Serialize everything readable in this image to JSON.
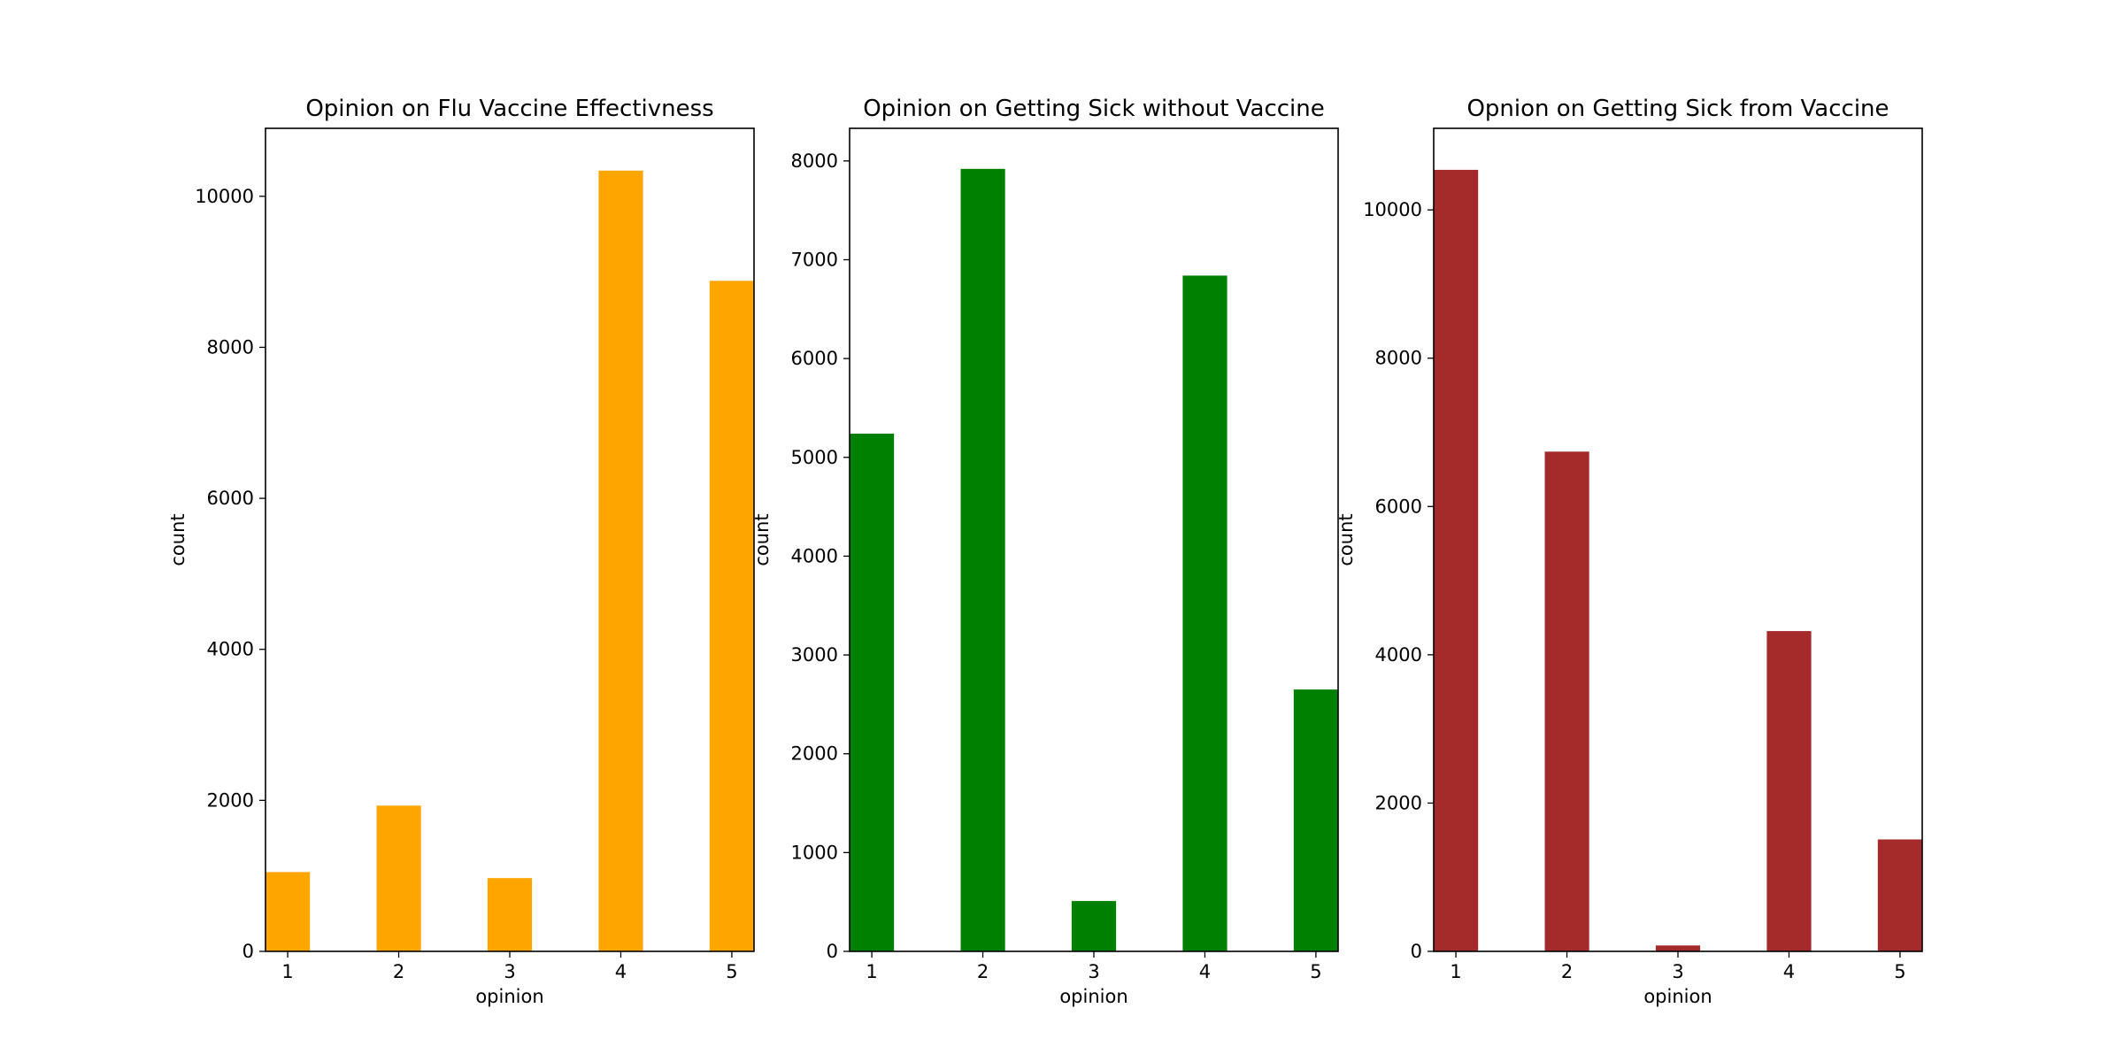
{
  "chart_data": [
    {
      "type": "bar",
      "title": "Opinion on Flu Vaccine Effectivness",
      "xlabel": "opinion",
      "ylabel": "count",
      "color": "#ffa500",
      "x": [
        1,
        2,
        4,
        5
      ],
      "values": [
        1050,
        1930,
        10340,
        8880
      ],
      "extra_bar": {
        "x": 3,
        "value": 970
      },
      "xticks": [
        "1",
        "2",
        "3",
        "4",
        "5"
      ],
      "yticks": [
        0,
        2000,
        4000,
        6000,
        8000,
        10000
      ],
      "ylim": [
        0,
        10900
      ],
      "xlim": [
        0.8,
        5.2
      ],
      "grid": false
    },
    {
      "type": "bar",
      "title": "Opinion on Getting Sick without Vaccine",
      "xlabel": "opinion",
      "ylabel": "count",
      "color": "#008000",
      "x": [
        1,
        2,
        4,
        5
      ],
      "values": [
        5240,
        7920,
        6840,
        2650
      ],
      "extra_bar": {
        "x": 3,
        "value": 510
      },
      "xticks": [
        "1",
        "2",
        "3",
        "4",
        "5"
      ],
      "yticks": [
        0,
        1000,
        2000,
        3000,
        4000,
        5000,
        6000,
        7000,
        8000
      ],
      "ylim": [
        0,
        8330
      ],
      "xlim": [
        0.8,
        5.2
      ],
      "grid": false
    },
    {
      "type": "bar",
      "title": "Opnion on Getting Sick from Vaccine",
      "xlabel": "opinion",
      "ylabel": "count",
      "color": "#a52a2a",
      "x": [
        1,
        2,
        4,
        5
      ],
      "values": [
        10540,
        6740,
        4320,
        1510
      ],
      "extra_bar": {
        "x": 3,
        "value": 80
      },
      "xticks": [
        "1",
        "2",
        "3",
        "4",
        "5"
      ],
      "yticks": [
        0,
        2000,
        4000,
        6000,
        8000,
        10000
      ],
      "ylim": [
        0,
        11100
      ],
      "xlim": [
        0.8,
        5.2
      ],
      "grid": false
    }
  ]
}
